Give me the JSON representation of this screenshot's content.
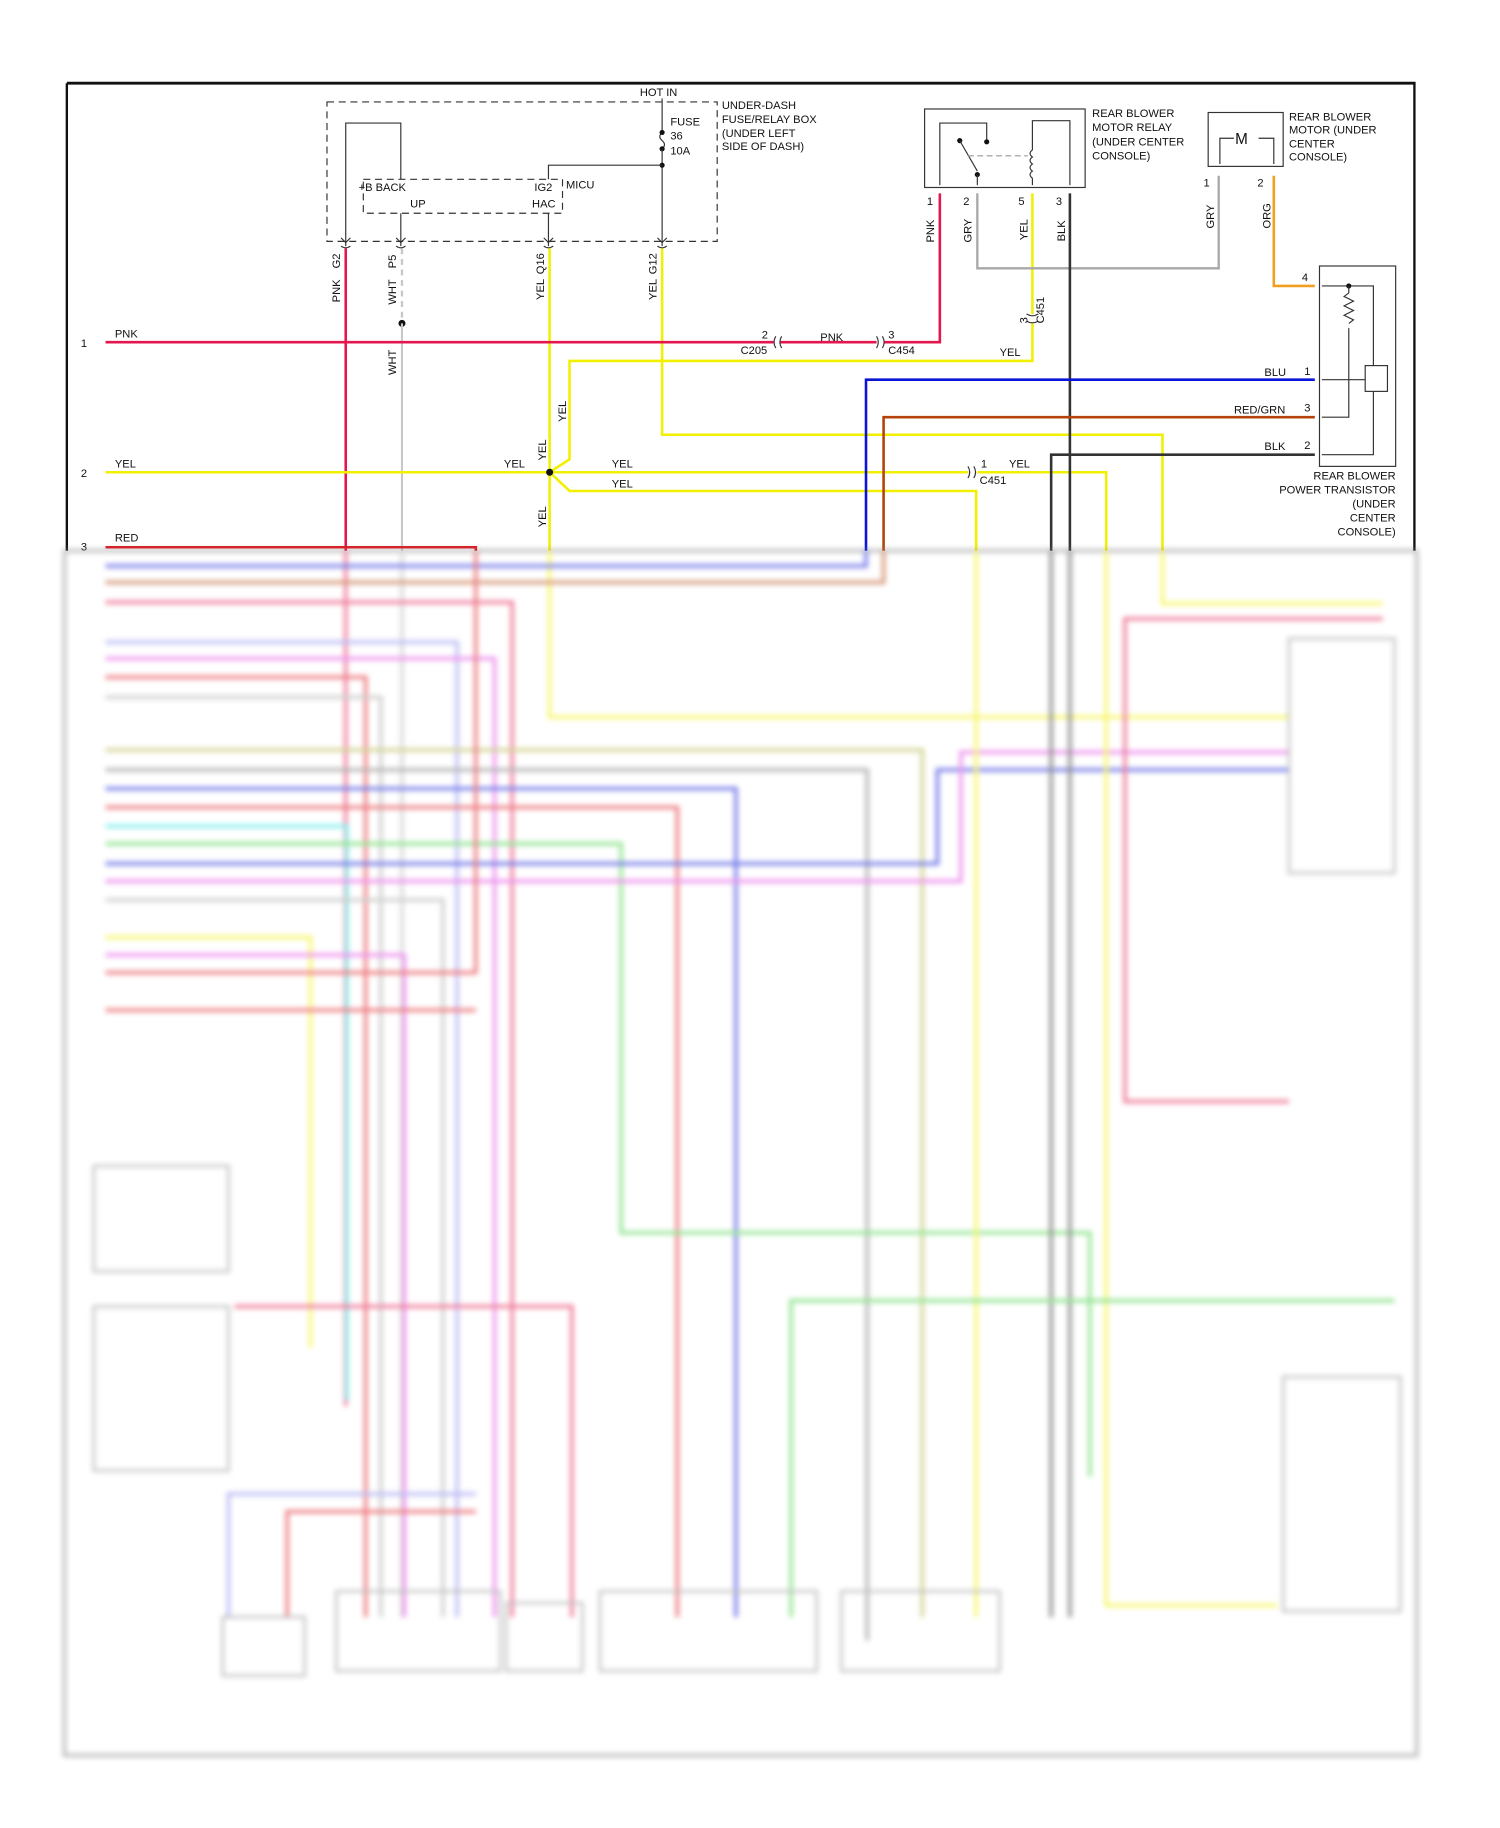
{
  "colors": {
    "PNK": "#e3174d",
    "YEL": "#f2f000",
    "GRY": "#a8a8a8",
    "BLK": "#333333",
    "BLU": "#0a14d6",
    "RED_GRN": "#b4420a",
    "ORG": "#f0a020",
    "WHT": "#c8c8c8",
    "RED": "#e0161e"
  },
  "fuse_box": {
    "hot_in": "HOT IN",
    "fuse": "FUSE",
    "fuse_number": "36",
    "fuse_rating": "10A",
    "label": [
      "UNDER-DASH",
      "FUSE/RELAY BOX",
      "(UNDER LEFT",
      "SIDE OF DASH)"
    ],
    "micu": "MICU",
    "b_back": "+B BACK",
    "up": "UP",
    "ig2": "IG2",
    "hac": "HAC",
    "terminals": [
      {
        "color": "PNK",
        "pin": "G2"
      },
      {
        "color": "WHT",
        "pin": "P5"
      },
      {
        "color": "YEL",
        "pin": "Q16"
      },
      {
        "color": "YEL",
        "pin": "G12"
      }
    ]
  },
  "relay": {
    "label": [
      "REAR BLOWER",
      "MOTOR RELAY",
      "(UNDER CENTER",
      "CONSOLE)"
    ],
    "pins": [
      {
        "pin": "1",
        "color": "PNK"
      },
      {
        "pin": "2",
        "color": "GRY"
      },
      {
        "pin": "5",
        "color": "YEL"
      },
      {
        "pin": "3",
        "color": "BLK"
      }
    ]
  },
  "motor": {
    "label": [
      "REAR BLOWER",
      "MOTOR (UNDER",
      "CENTER",
      "CONSOLE)"
    ],
    "symbol": "M",
    "pins": [
      {
        "pin": "1",
        "color": "GRY"
      },
      {
        "pin": "2",
        "color": "ORG"
      }
    ]
  },
  "transistor": {
    "label": [
      "REAR BLOWER",
      "POWER TRANSISTOR",
      "(UNDER",
      "CENTER",
      "CONSOLE)"
    ],
    "pins": [
      {
        "pin": "4",
        "color": ""
      },
      {
        "pin": "1",
        "color": "BLU"
      },
      {
        "pin": "3",
        "color": "RED/GRN"
      },
      {
        "pin": "2",
        "color": "BLK"
      }
    ]
  },
  "lines": [
    {
      "number": "1",
      "color": "PNK"
    },
    {
      "number": "2",
      "color": "YEL"
    },
    {
      "number": "3",
      "color": "RED"
    }
  ],
  "connectors": {
    "c205": "C205",
    "c205_pin": "2",
    "c454": "C454",
    "c454_pin": "3",
    "c451": "C451",
    "c451_pin_a": "3",
    "c451_pin_b": "1"
  },
  "wire_labels": {
    "pnk_mid": "PNK",
    "wht_lower": "WHT",
    "yel_c451": "YEL",
    "yel_vert_up": "YEL",
    "yel_splice_in": "YEL",
    "yel_splice_vert": "YEL",
    "yel_out_a": "YEL",
    "yel_out_b": "YEL",
    "yel_below": "YEL",
    "yel_c451_1": "YEL"
  }
}
